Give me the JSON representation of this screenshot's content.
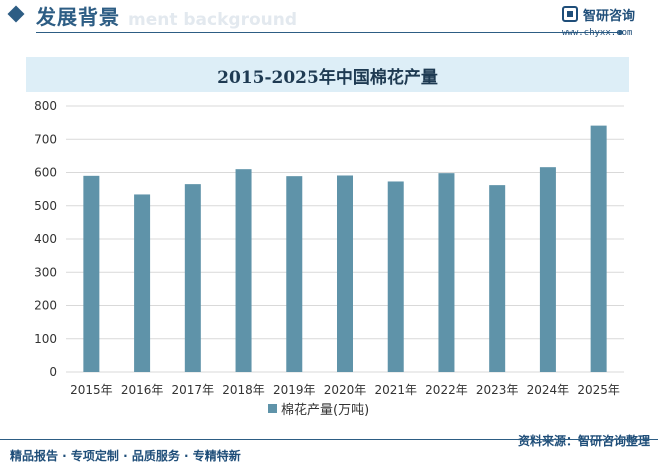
{
  "header": {
    "section_title": "发展背景",
    "section_title_en": "ment background",
    "brand_name": "智研咨询",
    "brand_url": "www.chyxx.com"
  },
  "footer": {
    "services": "精品报告 · 专项定制 · 品质服务 · 专精特新",
    "source": "资料来源：智研咨询整理"
  },
  "colors": {
    "bar": "#5f93a9",
    "accent": "#2d5d84",
    "title_band": "#ddeef7",
    "grid": "#d9d9d9"
  },
  "chart_data": {
    "type": "bar",
    "title": "2015-2025年中国棉花产量",
    "categories": [
      "2015年",
      "2016年",
      "2017年",
      "2018年",
      "2019年",
      "2020年",
      "2021年",
      "2022年",
      "2023年",
      "2024年",
      "2025年"
    ],
    "series": [
      {
        "name": "棉花产量(万吨)",
        "values": [
          590,
          534,
          565,
          610,
          589,
          591,
          573,
          598,
          562,
          616,
          741
        ]
      }
    ],
    "yticks": [
      0,
      100,
      200,
      300,
      400,
      500,
      600,
      700,
      800
    ],
    "ylim": [
      0,
      800
    ],
    "grid": true,
    "legend_position": "bottom"
  }
}
